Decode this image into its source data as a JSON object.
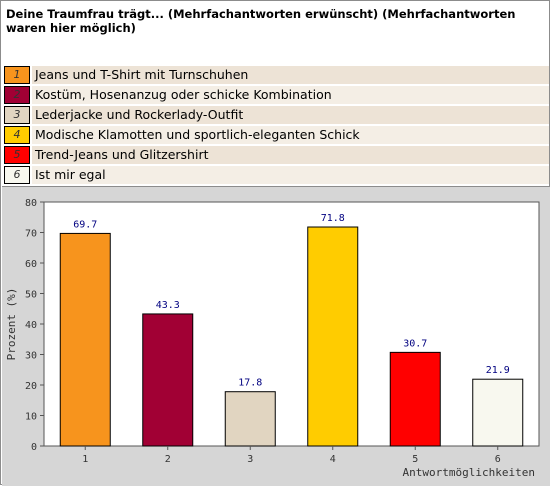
{
  "question": "Deine Traumfrau trägt... (Mehrfachantworten erwünscht) (Mehrfachantworten waren hier möglich)",
  "legend": [
    {
      "num": "1",
      "label": "Jeans und T-Shirt mit Turnschuhen",
      "color": "#f7941d"
    },
    {
      "num": "2",
      "label": "Kostüm, Hosenanzug oder schicke Kombination",
      "color": "#a10034"
    },
    {
      "num": "3",
      "label": "Lederjacke und Rockerlady-Outfit",
      "color": "#e1d5c1"
    },
    {
      "num": "4",
      "label": "Modische Klamotten und sportlich-eleganten Schick",
      "color": "#ffcc00"
    },
    {
      "num": "5",
      "label": "Trend-Jeans und Glitzershirt",
      "color": "#ff0000"
    },
    {
      "num": "6",
      "label": "Ist mir egal",
      "color": "#f8f8ef"
    }
  ],
  "chart_data": {
    "type": "bar",
    "categories": [
      "1",
      "2",
      "3",
      "4",
      "5",
      "6"
    ],
    "values": [
      69.7,
      43.3,
      17.8,
      71.8,
      30.7,
      21.9
    ],
    "data_labels": [
      "69.7",
      "43.3",
      "17.8",
      "71.8",
      "30.7",
      "21.9"
    ],
    "colors": [
      "#f7941d",
      "#a10034",
      "#e1d5c1",
      "#ffcc00",
      "#ff0000",
      "#f8f8ef"
    ],
    "ylabel": "Prozent (%)",
    "xlabel": "Antwortmöglichkeiten",
    "ylim": [
      0,
      80
    ],
    "yticks": [
      "0",
      "10",
      "20",
      "30",
      "40",
      "50",
      "60",
      "70",
      "80"
    ],
    "yticks_values": [
      0,
      10,
      20,
      30,
      40,
      50,
      60,
      70,
      80
    ],
    "grid": false
  }
}
